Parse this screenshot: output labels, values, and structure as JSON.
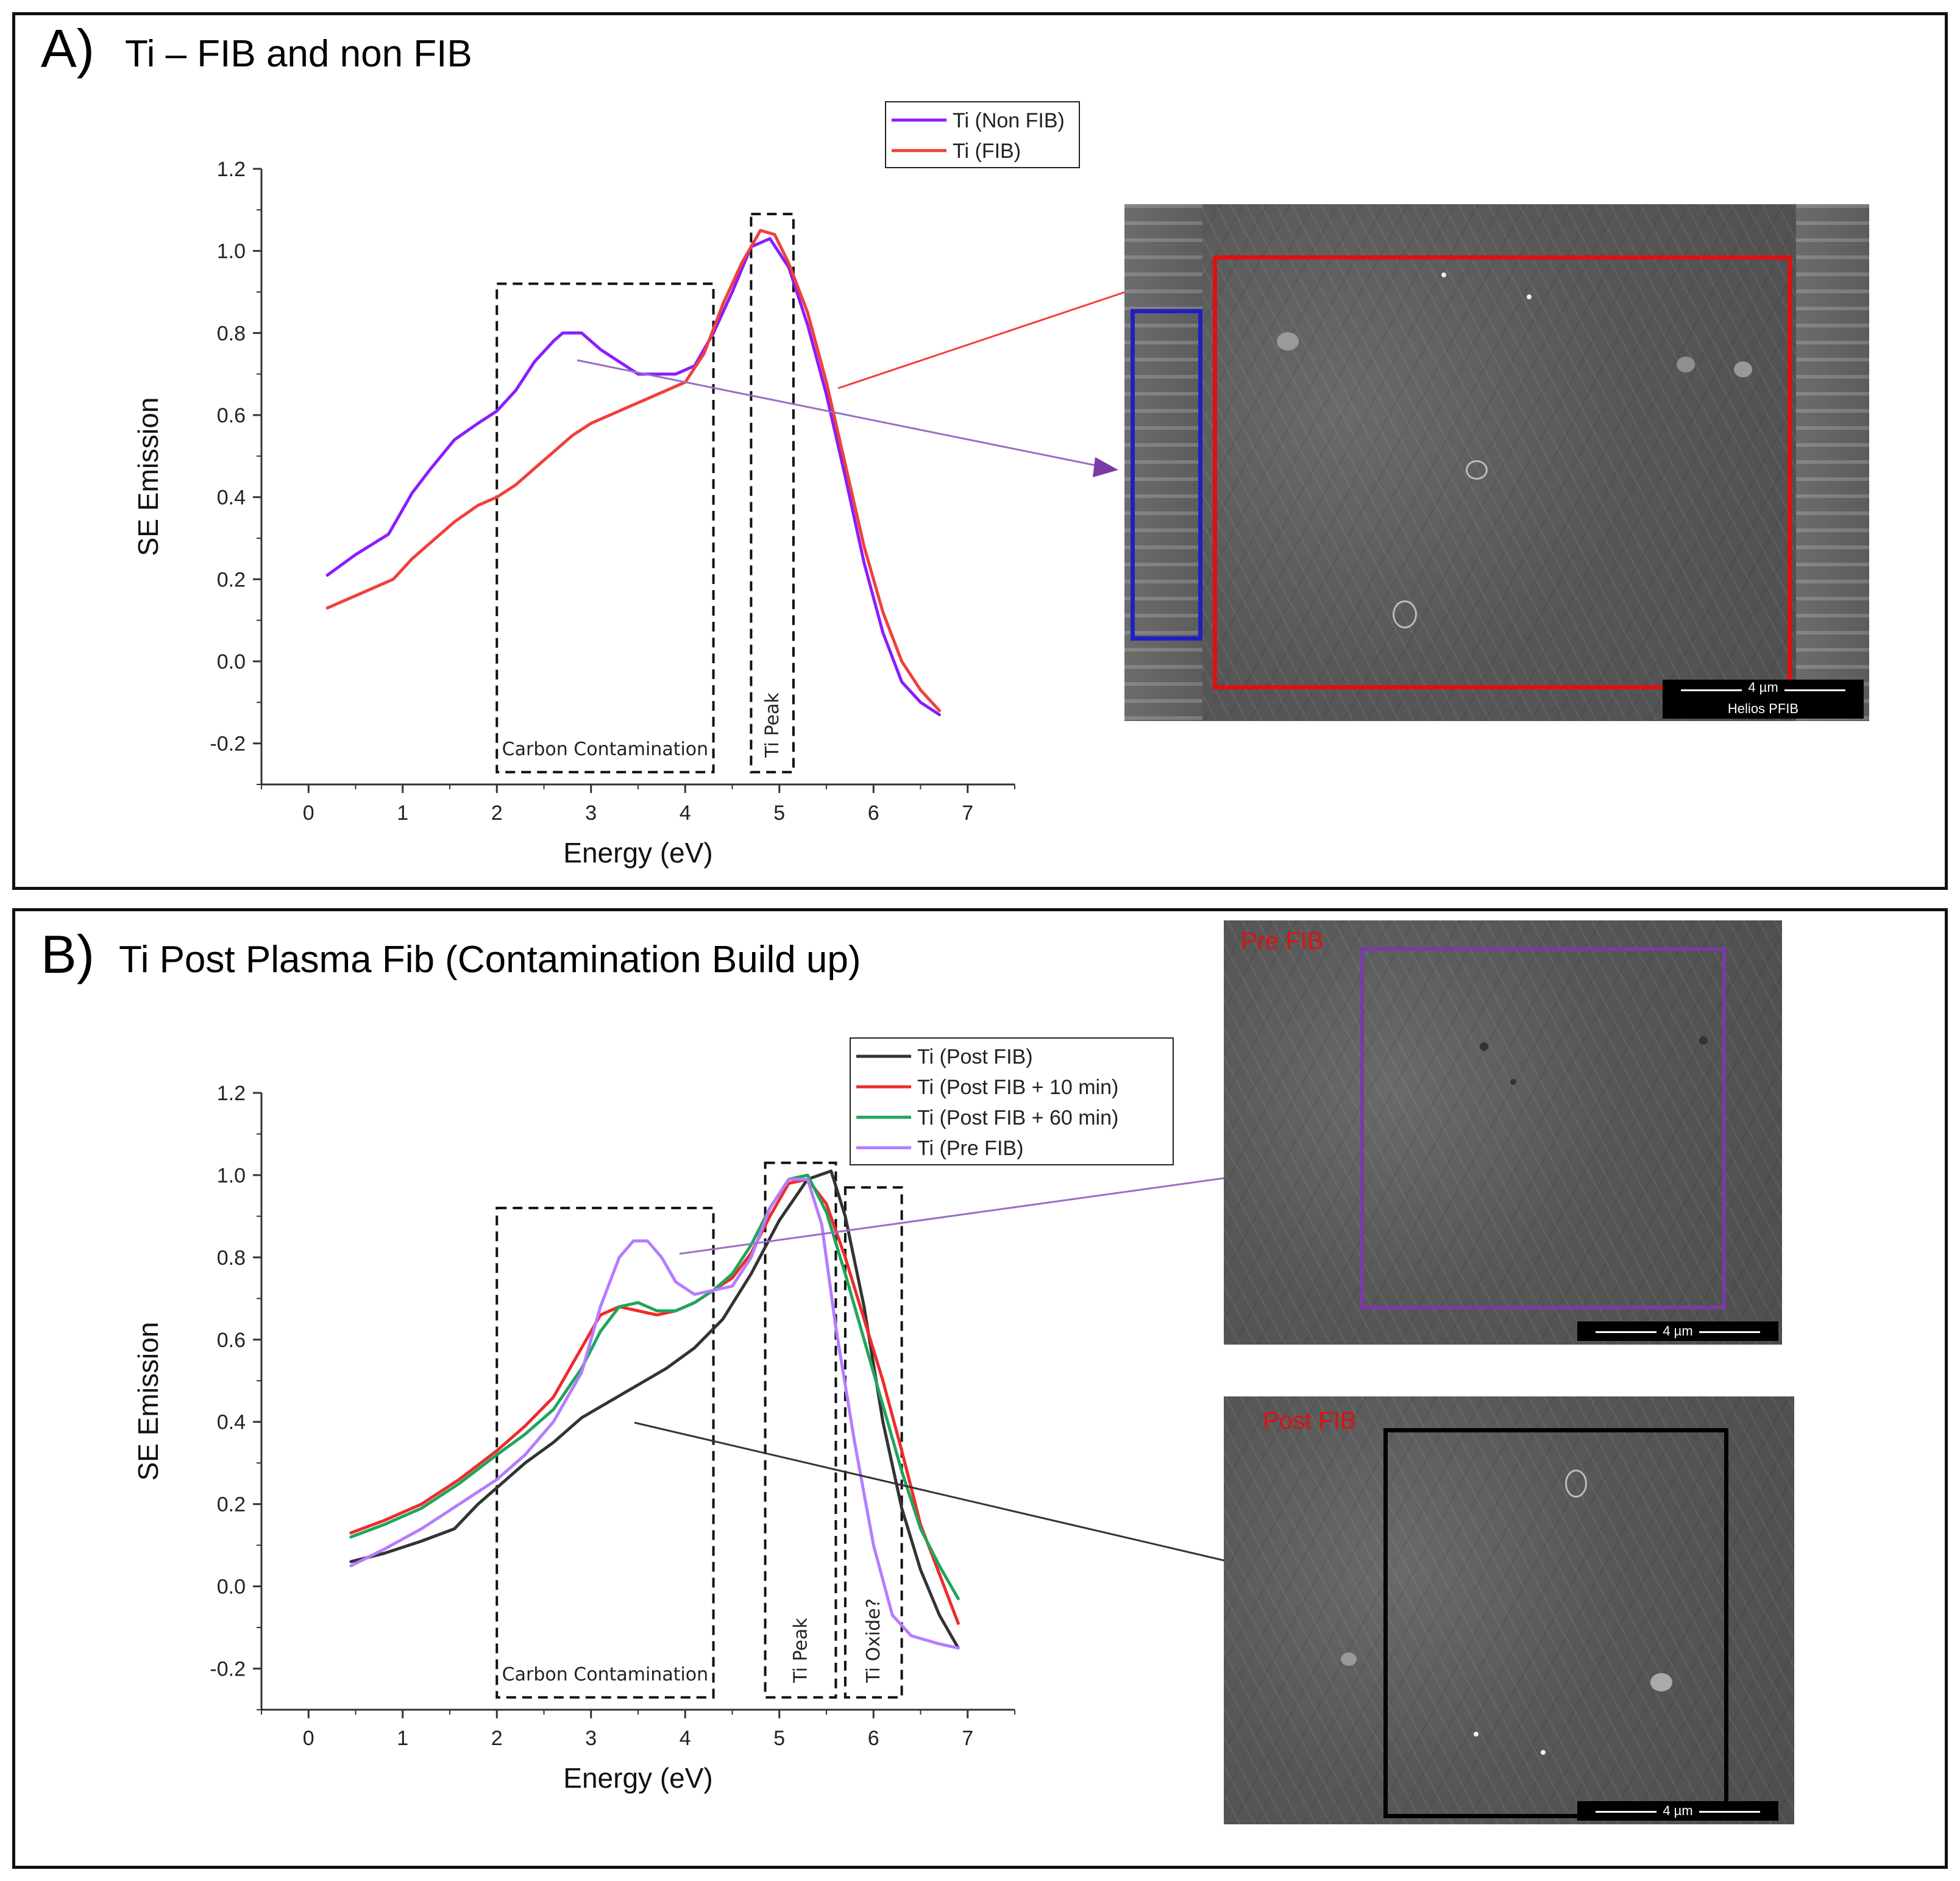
{
  "panel_a": {
    "letter": "A)",
    "title": "Ti – FIB and non FIB",
    "micrograph": {
      "scale_label": "4 µm",
      "instrument_label": "Helios PFIB"
    }
  },
  "panel_b": {
    "letter": "B)",
    "title": "Ti Post Plasma Fib (Contamination Build up)",
    "micrograph_pre": {
      "overlay_label": "Pre FIB",
      "scale_label": "4 µm"
    },
    "micrograph_post": {
      "overlay_label": "Post FIB",
      "scale_label": "4 µm"
    }
  },
  "colors": {
    "non_fib": "#8b1cff",
    "fib": "#f0403a",
    "post_fib": "#333333",
    "post_fib_10": "#ee2b2b",
    "post_fib_60": "#1fa55c",
    "pre_fib": "#b57cff",
    "roi_red": "#e01010",
    "roi_blue": "#2020c0",
    "roi_purple": "#7a3aa8",
    "roi_black": "#000000"
  },
  "chart_data": [
    {
      "type": "line",
      "title": "",
      "xlabel": "Energy (eV)",
      "ylabel": "SE Emission",
      "xlim": [
        -0.5,
        7.5
      ],
      "ylim": [
        -0.3,
        1.2
      ],
      "xticks": [
        "0",
        "1",
        "2",
        "3",
        "4",
        "5",
        "6",
        "7"
      ],
      "yticks": [
        "-0.2",
        "0.0",
        "0.2",
        "0.4",
        "0.6",
        "0.8",
        "1.0",
        "1.2"
      ],
      "legend_position": "top-center",
      "series": [
        {
          "name": "Ti (Non FIB)",
          "color_key": "non_fib",
          "x": [
            0.2,
            0.5,
            0.85,
            1.1,
            1.3,
            1.55,
            1.8,
            2.0,
            2.2,
            2.4,
            2.6,
            2.7,
            2.9,
            3.1,
            3.3,
            3.5,
            3.7,
            3.9,
            4.1,
            4.3,
            4.5,
            4.7,
            4.9,
            5.1,
            5.3,
            5.5,
            5.7,
            5.9,
            6.1,
            6.3,
            6.5,
            6.7
          ],
          "y": [
            0.21,
            0.26,
            0.31,
            0.41,
            0.47,
            0.54,
            0.58,
            0.61,
            0.66,
            0.73,
            0.78,
            0.8,
            0.8,
            0.76,
            0.73,
            0.7,
            0.7,
            0.7,
            0.72,
            0.8,
            0.9,
            1.01,
            1.03,
            0.96,
            0.82,
            0.65,
            0.45,
            0.24,
            0.07,
            -0.05,
            -0.1,
            -0.13
          ]
        },
        {
          "name": "Ti (FIB)",
          "color_key": "fib",
          "x": [
            0.2,
            0.5,
            0.9,
            1.1,
            1.3,
            1.55,
            1.8,
            2.0,
            2.2,
            2.4,
            2.6,
            2.8,
            3.0,
            3.2,
            3.4,
            3.6,
            3.8,
            4.0,
            4.2,
            4.4,
            4.6,
            4.8,
            4.95,
            5.1,
            5.3,
            5.5,
            5.7,
            5.9,
            6.1,
            6.3,
            6.5,
            6.7
          ],
          "y": [
            0.13,
            0.16,
            0.2,
            0.25,
            0.29,
            0.34,
            0.38,
            0.4,
            0.43,
            0.47,
            0.51,
            0.55,
            0.58,
            0.6,
            0.62,
            0.64,
            0.66,
            0.68,
            0.75,
            0.87,
            0.97,
            1.05,
            1.04,
            0.97,
            0.85,
            0.68,
            0.48,
            0.28,
            0.12,
            0.0,
            -0.07,
            -0.12
          ]
        }
      ],
      "annotations": [
        {
          "label": "Carbon Contamination",
          "x0": 2.0,
          "x1": 4.3,
          "y0": -0.27,
          "y1": 0.92
        },
        {
          "label": "Ti Peak",
          "x0": 4.7,
          "x1": 5.15,
          "y0": -0.27,
          "y1": 1.09
        }
      ]
    },
    {
      "type": "line",
      "title": "",
      "xlabel": "Energy (eV)",
      "ylabel": "SE Emission",
      "xlim": [
        -0.5,
        7.5
      ],
      "ylim": [
        -0.3,
        1.2
      ],
      "xticks": [
        "0",
        "1",
        "2",
        "3",
        "4",
        "5",
        "6",
        "7"
      ],
      "yticks": [
        "-0.2",
        "0.0",
        "0.2",
        "0.4",
        "0.6",
        "0.8",
        "1.0",
        "1.2"
      ],
      "legend_position": "top-right",
      "series": [
        {
          "name": "Ti (Post FIB)",
          "color_key": "post_fib",
          "x": [
            0.45,
            0.8,
            1.2,
            1.55,
            1.8,
            2.0,
            2.3,
            2.6,
            2.9,
            3.2,
            3.5,
            3.8,
            4.1,
            4.4,
            4.7,
            5.0,
            5.3,
            5.55,
            5.7,
            5.9,
            6.1,
            6.3,
            6.5,
            6.7,
            6.9
          ],
          "y": [
            0.06,
            0.08,
            0.11,
            0.14,
            0.2,
            0.24,
            0.3,
            0.35,
            0.41,
            0.45,
            0.49,
            0.53,
            0.58,
            0.65,
            0.76,
            0.89,
            0.99,
            1.01,
            0.9,
            0.68,
            0.4,
            0.19,
            0.04,
            -0.07,
            -0.15
          ]
        },
        {
          "name": "Ti (Post FIB + 10 min)",
          "color_key": "post_fib_10",
          "x": [
            0.45,
            0.8,
            1.2,
            1.6,
            2.0,
            2.3,
            2.6,
            2.9,
            3.1,
            3.3,
            3.5,
            3.7,
            3.9,
            4.1,
            4.3,
            4.5,
            4.7,
            4.9,
            5.1,
            5.3,
            5.5,
            5.7,
            5.9,
            6.1,
            6.3,
            6.5,
            6.7,
            6.9
          ],
          "y": [
            0.13,
            0.16,
            0.2,
            0.26,
            0.33,
            0.39,
            0.46,
            0.58,
            0.66,
            0.68,
            0.67,
            0.66,
            0.67,
            0.69,
            0.72,
            0.75,
            0.81,
            0.9,
            0.98,
            0.99,
            0.93,
            0.8,
            0.65,
            0.5,
            0.33,
            0.15,
            0.03,
            -0.09
          ]
        },
        {
          "name": "Ti (Post FIB + 60 min)",
          "color_key": "post_fib_60",
          "x": [
            0.45,
            0.8,
            1.2,
            1.6,
            2.0,
            2.3,
            2.6,
            2.9,
            3.1,
            3.3,
            3.5,
            3.7,
            3.9,
            4.1,
            4.3,
            4.5,
            4.7,
            4.9,
            5.1,
            5.3,
            5.5,
            5.7,
            5.9,
            6.1,
            6.3,
            6.5,
            6.7,
            6.9
          ],
          "y": [
            0.12,
            0.15,
            0.19,
            0.25,
            0.32,
            0.37,
            0.43,
            0.53,
            0.62,
            0.68,
            0.69,
            0.67,
            0.67,
            0.69,
            0.72,
            0.76,
            0.83,
            0.92,
            0.99,
            1.0,
            0.91,
            0.76,
            0.6,
            0.44,
            0.28,
            0.14,
            0.05,
            -0.03
          ]
        },
        {
          "name": "Ti (Pre FIB)",
          "color_key": "pre_fib",
          "x": [
            0.45,
            0.8,
            1.2,
            1.6,
            2.0,
            2.3,
            2.6,
            2.9,
            3.1,
            3.3,
            3.45,
            3.6,
            3.75,
            3.9,
            4.1,
            4.3,
            4.5,
            4.7,
            4.9,
            5.1,
            5.3,
            5.45,
            5.6,
            5.8,
            6.0,
            6.2,
            6.4,
            6.7,
            6.9
          ],
          "y": [
            0.05,
            0.09,
            0.14,
            0.2,
            0.26,
            0.32,
            0.4,
            0.52,
            0.68,
            0.8,
            0.84,
            0.84,
            0.8,
            0.74,
            0.71,
            0.72,
            0.73,
            0.8,
            0.92,
            0.99,
            0.99,
            0.88,
            0.63,
            0.35,
            0.1,
            -0.07,
            -0.12,
            -0.14,
            -0.15
          ]
        }
      ],
      "annotations": [
        {
          "label": "Carbon Contamination",
          "x0": 2.0,
          "x1": 4.3,
          "y0": -0.27,
          "y1": 0.92
        },
        {
          "label": "Ti Peak",
          "x0": 4.85,
          "x1": 5.6,
          "y0": -0.27,
          "y1": 1.03
        },
        {
          "label": "Ti Oxide?",
          "x0": 5.7,
          "x1": 6.3,
          "y0": -0.27,
          "y1": 0.97
        }
      ]
    }
  ]
}
